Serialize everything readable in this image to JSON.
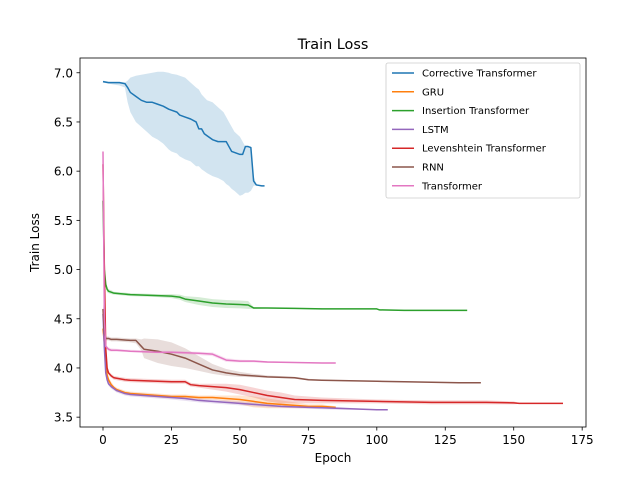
{
  "chart_data": {
    "type": "line",
    "title": "Train Loss",
    "xlabel": "Epoch",
    "ylabel": "Train Loss",
    "xlim": [
      -8.4,
      176.4
    ],
    "ylim": [
      3.4,
      7.15
    ],
    "xticks": [
      0,
      25,
      50,
      75,
      100,
      125,
      150,
      175
    ],
    "yticks": [
      3.5,
      4.0,
      4.5,
      5.0,
      5.5,
      6.0,
      6.5,
      7.0
    ],
    "xtick_labels": [
      "0",
      "25",
      "50",
      "75",
      "100",
      "125",
      "150",
      "175"
    ],
    "ytick_labels": [
      "3.5",
      "4.0",
      "4.5",
      "5.0",
      "5.5",
      "6.0",
      "6.5",
      "7.0"
    ],
    "grid": false,
    "legend_position": "top-right",
    "series": [
      {
        "name": "Corrective Transformer",
        "color": "#1f77b4",
        "x": [
          0,
          2,
          4,
          6,
          8,
          9,
          10,
          12,
          14,
          16,
          18,
          20,
          22,
          24,
          25,
          27,
          28,
          30,
          32,
          34,
          35,
          36,
          37,
          38,
          40,
          42,
          44,
          45,
          46,
          47,
          48,
          50,
          51,
          52,
          53,
          54,
          55,
          56,
          58,
          59
        ],
        "y": [
          6.91,
          6.9,
          6.9,
          6.9,
          6.89,
          6.85,
          6.8,
          6.76,
          6.72,
          6.7,
          6.7,
          6.68,
          6.66,
          6.63,
          6.62,
          6.6,
          6.57,
          6.55,
          6.53,
          6.5,
          6.43,
          6.43,
          6.38,
          6.36,
          6.32,
          6.3,
          6.3,
          6.3,
          6.25,
          6.2,
          6.19,
          6.17,
          6.17,
          6.25,
          6.25,
          6.24,
          5.9,
          5.86,
          5.85,
          5.85
        ],
        "band_lower": [
          6.9,
          6.89,
          6.88,
          6.87,
          6.85,
          6.7,
          6.6,
          6.5,
          6.45,
          6.4,
          6.35,
          6.32,
          6.28,
          6.22,
          6.2,
          6.18,
          6.15,
          6.12,
          6.1,
          6.05,
          6.05,
          6.02,
          6.0,
          5.98,
          5.95,
          5.93,
          5.9,
          5.87,
          5.85,
          5.82,
          5.8,
          5.75,
          5.76,
          5.78,
          5.78,
          5.8,
          5.85,
          5.86,
          5.85,
          5.85
        ],
        "band_upper": [
          6.92,
          6.91,
          6.91,
          6.91,
          6.9,
          6.92,
          6.95,
          6.97,
          6.98,
          6.99,
          7.0,
          7.01,
          7.01,
          7.0,
          6.99,
          6.98,
          6.97,
          6.95,
          6.9,
          6.85,
          6.83,
          6.78,
          6.75,
          6.72,
          6.7,
          6.65,
          6.6,
          6.55,
          6.5,
          6.45,
          6.4,
          6.35,
          6.3,
          6.25,
          6.25,
          6.25,
          5.95,
          5.87,
          5.85,
          5.85
        ]
      },
      {
        "name": "GRU",
        "color": "#ff7f0e",
        "x": [
          0,
          0.5,
          1,
          1.5,
          2,
          3,
          4,
          5,
          6,
          8,
          10,
          15,
          20,
          25,
          30,
          35,
          40,
          45,
          50,
          55,
          60,
          65,
          70,
          75,
          80,
          85
        ],
        "y": [
          4.4,
          4.25,
          4.05,
          3.93,
          3.88,
          3.83,
          3.8,
          3.78,
          3.77,
          3.75,
          3.74,
          3.73,
          3.72,
          3.71,
          3.71,
          3.7,
          3.7,
          3.69,
          3.68,
          3.66,
          3.64,
          3.63,
          3.62,
          3.61,
          3.61,
          3.6
        ],
        "band_lower": [
          4.35,
          4.2,
          4.0,
          3.9,
          3.85,
          3.8,
          3.78,
          3.76,
          3.75,
          3.73,
          3.72,
          3.71,
          3.7,
          3.69,
          3.69,
          3.68,
          3.68,
          3.66,
          3.63,
          3.6,
          3.59,
          3.59,
          3.59,
          3.59,
          3.59,
          3.59
        ],
        "band_upper": [
          4.45,
          4.3,
          4.1,
          3.96,
          3.91,
          3.86,
          3.82,
          3.8,
          3.79,
          3.77,
          3.76,
          3.75,
          3.74,
          3.73,
          3.73,
          3.72,
          3.72,
          3.72,
          3.72,
          3.71,
          3.69,
          3.67,
          3.65,
          3.63,
          3.63,
          3.61
        ]
      },
      {
        "name": "Insertion Transformer",
        "color": "#2ca02c",
        "x": [
          0,
          0.5,
          1,
          1.5,
          2,
          3,
          4,
          6,
          8,
          10,
          15,
          20,
          25,
          28,
          30,
          35,
          40,
          45,
          50,
          53,
          55,
          60,
          70,
          80,
          90,
          100,
          101,
          110,
          120,
          133
        ],
        "y": [
          5.7,
          5.0,
          4.85,
          4.8,
          4.78,
          4.77,
          4.76,
          4.755,
          4.75,
          4.745,
          4.74,
          4.735,
          4.73,
          4.72,
          4.7,
          4.68,
          4.66,
          4.65,
          4.645,
          4.64,
          4.61,
          4.61,
          4.605,
          4.6,
          4.6,
          4.6,
          4.59,
          4.585,
          4.585,
          4.585
        ],
        "band_lower": [
          5.6,
          4.95,
          4.82,
          4.77,
          4.76,
          4.75,
          4.745,
          4.74,
          4.735,
          4.73,
          4.725,
          4.72,
          4.71,
          4.695,
          4.67,
          4.64,
          4.62,
          4.61,
          4.605,
          4.6,
          4.6,
          4.605,
          4.6,
          4.595,
          4.595,
          4.595,
          4.585,
          4.58,
          4.58,
          4.58
        ],
        "band_upper": [
          5.8,
          5.05,
          4.88,
          4.83,
          4.8,
          4.79,
          4.775,
          4.77,
          4.765,
          4.76,
          4.755,
          4.75,
          4.75,
          4.745,
          4.73,
          4.72,
          4.7,
          4.69,
          4.685,
          4.68,
          4.62,
          4.615,
          4.61,
          4.605,
          4.605,
          4.605,
          4.595,
          4.59,
          4.59,
          4.59
        ]
      },
      {
        "name": "LSTM",
        "color": "#9467bd",
        "x": [
          0,
          0.5,
          1,
          1.5,
          2,
          3,
          4,
          5,
          6,
          8,
          10,
          15,
          20,
          25,
          30,
          35,
          40,
          45,
          50,
          55,
          60,
          65,
          70,
          75,
          80,
          85,
          90,
          95,
          100,
          104
        ],
        "y": [
          4.55,
          4.2,
          3.95,
          3.88,
          3.84,
          3.81,
          3.79,
          3.77,
          3.76,
          3.74,
          3.73,
          3.72,
          3.71,
          3.7,
          3.69,
          3.67,
          3.66,
          3.65,
          3.64,
          3.63,
          3.62,
          3.61,
          3.605,
          3.6,
          3.595,
          3.59,
          3.585,
          3.58,
          3.575,
          3.575
        ],
        "band_lower": [
          4.45,
          4.15,
          3.92,
          3.86,
          3.82,
          3.79,
          3.77,
          3.75,
          3.74,
          3.72,
          3.71,
          3.7,
          3.69,
          3.68,
          3.665,
          3.65,
          3.64,
          3.63,
          3.62,
          3.61,
          3.6,
          3.595,
          3.59,
          3.585,
          3.58,
          3.575,
          3.575,
          3.575,
          3.575,
          3.575
        ],
        "band_upper": [
          4.65,
          4.25,
          3.98,
          3.9,
          3.86,
          3.83,
          3.81,
          3.79,
          3.78,
          3.76,
          3.75,
          3.74,
          3.73,
          3.72,
          3.715,
          3.69,
          3.68,
          3.67,
          3.66,
          3.65,
          3.64,
          3.625,
          3.62,
          3.615,
          3.61,
          3.605,
          3.595,
          3.585,
          3.575,
          3.575
        ]
      },
      {
        "name": "Levenshtein Transformer",
        "color": "#d62728",
        "x": [
          0,
          0.5,
          1,
          1.5,
          2,
          3,
          4,
          6,
          8,
          10,
          15,
          20,
          25,
          30,
          32,
          35,
          40,
          45,
          50,
          55,
          60,
          65,
          70,
          80,
          90,
          100,
          110,
          120,
          130,
          140,
          150,
          152,
          160,
          168
        ],
        "y": [
          6.07,
          5.0,
          4.2,
          4.0,
          3.95,
          3.92,
          3.9,
          3.89,
          3.88,
          3.875,
          3.87,
          3.865,
          3.86,
          3.86,
          3.83,
          3.82,
          3.81,
          3.8,
          3.78,
          3.75,
          3.72,
          3.7,
          3.68,
          3.67,
          3.665,
          3.66,
          3.655,
          3.65,
          3.65,
          3.65,
          3.645,
          3.64,
          3.64,
          3.64
        ],
        "band_lower": [
          5.95,
          4.9,
          4.15,
          3.97,
          3.93,
          3.9,
          3.88,
          3.87,
          3.86,
          3.855,
          3.85,
          3.845,
          3.84,
          3.84,
          3.81,
          3.8,
          3.78,
          3.76,
          3.73,
          3.7,
          3.66,
          3.64,
          3.64,
          3.64,
          3.64,
          3.64,
          3.635,
          3.63,
          3.63,
          3.63,
          3.63,
          3.635,
          3.64,
          3.64
        ],
        "band_upper": [
          6.2,
          5.1,
          4.25,
          4.03,
          3.97,
          3.94,
          3.92,
          3.91,
          3.9,
          3.895,
          3.89,
          3.885,
          3.88,
          3.88,
          3.85,
          3.84,
          3.84,
          3.84,
          3.83,
          3.8,
          3.77,
          3.75,
          3.72,
          3.7,
          3.69,
          3.68,
          3.675,
          3.67,
          3.67,
          3.67,
          3.66,
          3.645,
          3.64,
          3.64
        ]
      },
      {
        "name": "RNN",
        "color": "#8c564b",
        "x": [
          0,
          0.5,
          1,
          2,
          3,
          5,
          10,
          12,
          14,
          15,
          20,
          25,
          30,
          35,
          40,
          45,
          50,
          55,
          60,
          70,
          75,
          80,
          90,
          100,
          110,
          120,
          130,
          138
        ],
        "y": [
          4.6,
          4.35,
          4.3,
          4.3,
          4.29,
          4.29,
          4.28,
          4.28,
          4.22,
          4.19,
          4.17,
          4.14,
          4.1,
          4.04,
          3.98,
          3.95,
          3.93,
          3.92,
          3.91,
          3.9,
          3.88,
          3.875,
          3.87,
          3.865,
          3.86,
          3.855,
          3.85,
          3.85
        ],
        "band_lower": [
          4.55,
          4.32,
          4.28,
          4.28,
          4.27,
          4.27,
          4.26,
          4.25,
          4.18,
          4.1,
          4.05,
          4.02,
          4.0,
          3.97,
          3.94,
          3.92,
          3.91,
          3.905,
          3.9,
          3.89,
          3.875,
          3.87,
          3.865,
          3.86,
          3.855,
          3.85,
          3.848,
          3.848
        ],
        "band_upper": [
          4.65,
          4.38,
          4.32,
          4.32,
          4.31,
          4.31,
          4.3,
          4.3,
          4.29,
          4.3,
          4.29,
          4.26,
          4.2,
          4.12,
          4.04,
          3.99,
          3.96,
          3.94,
          3.925,
          3.91,
          3.89,
          3.88,
          3.875,
          3.87,
          3.865,
          3.86,
          3.852,
          3.852
        ]
      },
      {
        "name": "Transformer",
        "color": "#e377c2",
        "x": [
          0,
          0.5,
          1,
          2,
          3,
          5,
          10,
          15,
          20,
          25,
          30,
          35,
          40,
          45,
          50,
          55,
          60,
          70,
          80,
          85
        ],
        "y": [
          6.2,
          4.5,
          4.22,
          4.19,
          4.18,
          4.18,
          4.17,
          4.165,
          4.16,
          4.16,
          4.155,
          4.15,
          4.14,
          4.08,
          4.07,
          4.07,
          4.06,
          4.055,
          4.05,
          4.05
        ],
        "band_lower": [
          6.15,
          4.45,
          4.2,
          4.17,
          4.165,
          4.165,
          4.16,
          4.155,
          4.15,
          4.145,
          4.14,
          4.13,
          4.12,
          4.06,
          4.055,
          4.055,
          4.05,
          4.05,
          4.045,
          4.045
        ],
        "band_upper": [
          6.25,
          4.55,
          4.24,
          4.21,
          4.2,
          4.195,
          4.185,
          4.18,
          4.175,
          4.175,
          4.17,
          4.165,
          4.16,
          4.1,
          4.085,
          4.08,
          4.07,
          4.06,
          4.055,
          4.055
        ]
      }
    ]
  }
}
